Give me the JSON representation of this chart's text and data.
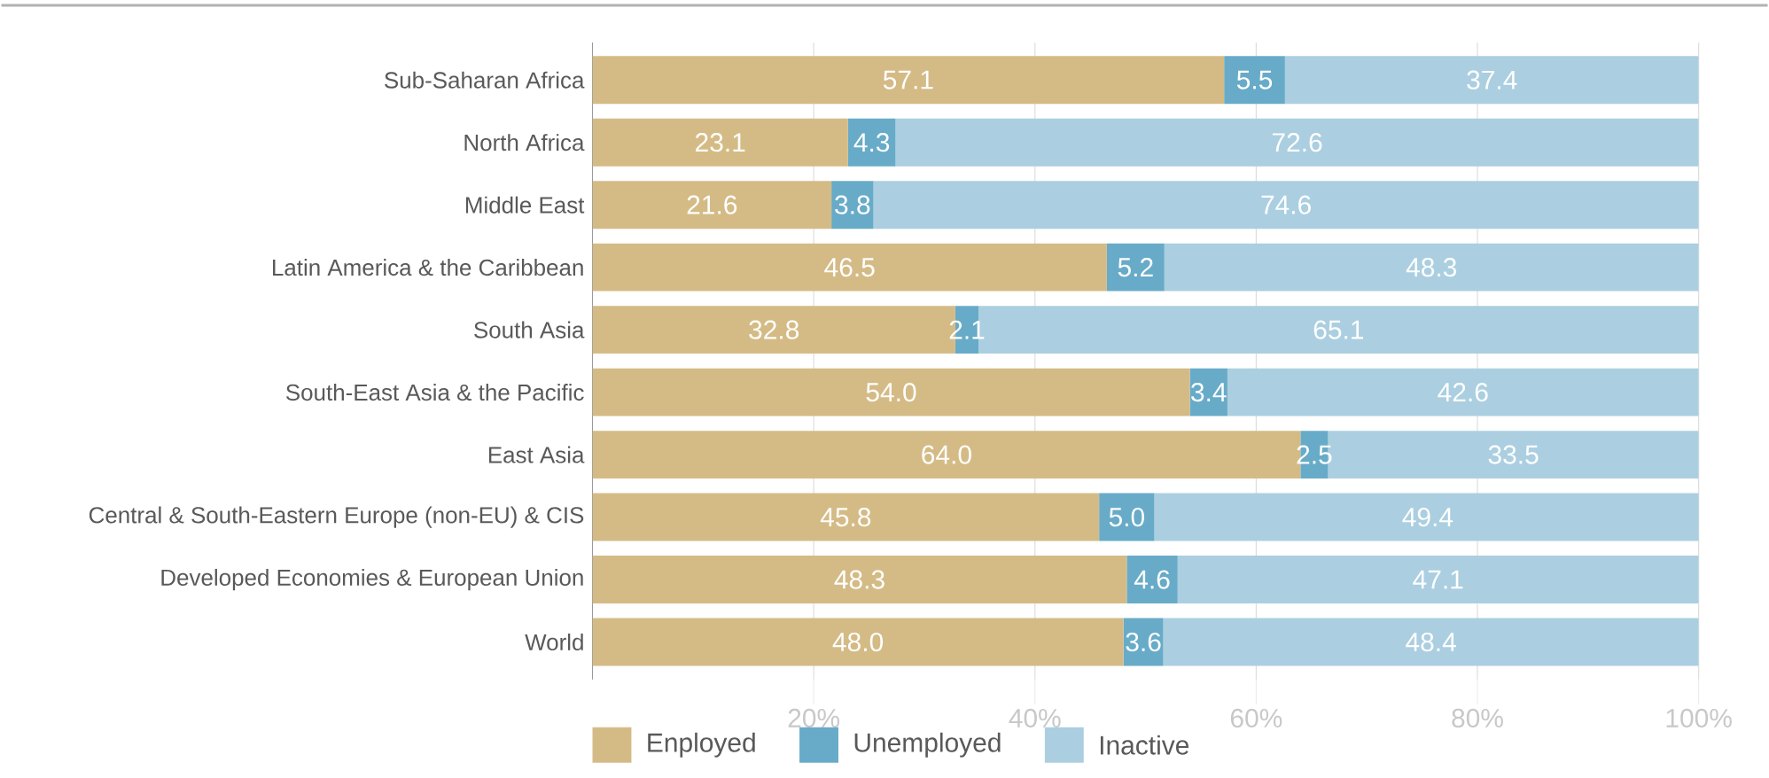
{
  "chart_data": {
    "type": "bar",
    "orientation": "horizontal",
    "stacked": true,
    "categories": [
      "Sub-Saharan Africa",
      "North Africa",
      "Middle East",
      "Latin America & the Caribbean",
      "South Asia",
      "South-East Asia & the Pacific",
      "East Asia",
      "Central & South-Eastern Europe (non-EU) & CIS",
      "Developed Economies & European Union",
      "World"
    ],
    "series": [
      {
        "name": "Enployed",
        "color": "#d4bb86",
        "values": [
          57.1,
          23.1,
          21.6,
          46.5,
          32.8,
          54.0,
          64.0,
          45.8,
          48.3,
          48.0
        ],
        "value_labels": [
          "57.1",
          "23.1",
          "21.6",
          "46.5",
          "32.8",
          "54.0",
          "64.0",
          "45.8",
          "48.3",
          "48.0"
        ]
      },
      {
        "name": "Unemployed",
        "color": "#68abc8",
        "values": [
          5.5,
          4.3,
          3.8,
          5.2,
          2.1,
          3.4,
          2.5,
          5.0,
          4.6,
          3.6
        ],
        "value_labels": [
          "5.5",
          "4.3",
          "3.8",
          "5.2",
          "2.1",
          "3.4",
          "2.5",
          "5.0",
          "4.6",
          "3.6"
        ]
      },
      {
        "name": "Inactive",
        "color": "#abcfe0",
        "values": [
          37.4,
          72.6,
          74.6,
          48.3,
          65.1,
          42.6,
          33.5,
          49.4,
          47.1,
          48.4
        ],
        "value_labels": [
          "37.4",
          "72.6",
          "74.6",
          "48.3",
          "65.1",
          "42.6",
          "33.5",
          "49.4",
          "47.1",
          "48.4"
        ]
      }
    ],
    "xlim": [
      0,
      100
    ],
    "xticks": [
      {
        "value": 20,
        "label": "20%"
      },
      {
        "value": 40,
        "label": "40%"
      },
      {
        "value": 60,
        "label": "60%"
      },
      {
        "value": 80,
        "label": "80%"
      },
      {
        "value": 100,
        "label": "100%"
      }
    ],
    "grid": "x",
    "legend": "bottom"
  }
}
